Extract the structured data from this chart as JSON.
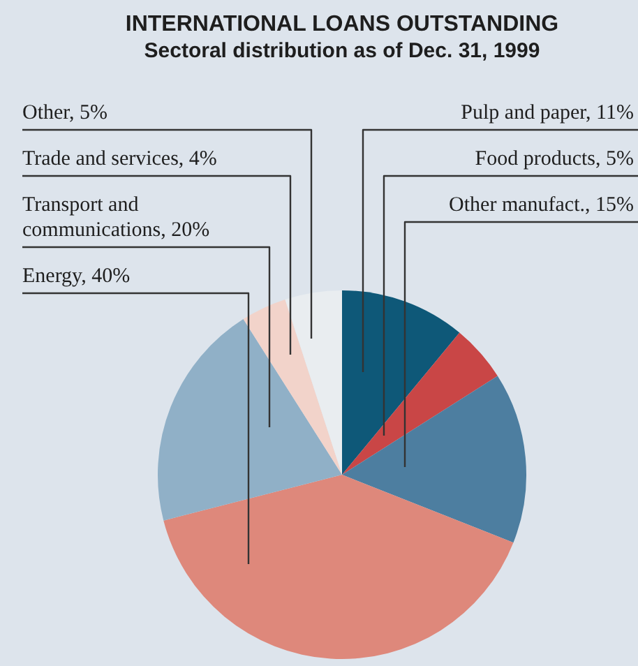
{
  "chart_data": {
    "type": "pie",
    "title": "INTERNATIONAL LOANS OUTSTANDING",
    "subtitle": "Sectoral distribution as of Dec. 31, 1999",
    "categories": [
      "Pulp and paper, 11%",
      "Food products, 5%",
      "Other manufact., 15%",
      "Energy, 40%",
      "Transport and communications, 20%",
      "Trade and services, 4%",
      "Other, 5%"
    ],
    "values": [
      11,
      5,
      15,
      40,
      20,
      4,
      5
    ],
    "colors": [
      "#0e5878",
      "#c94646",
      "#4d7ea0",
      "#de887b",
      "#90b0c7",
      "#f2d3ca",
      "#e9edf0"
    ],
    "legend": false
  }
}
